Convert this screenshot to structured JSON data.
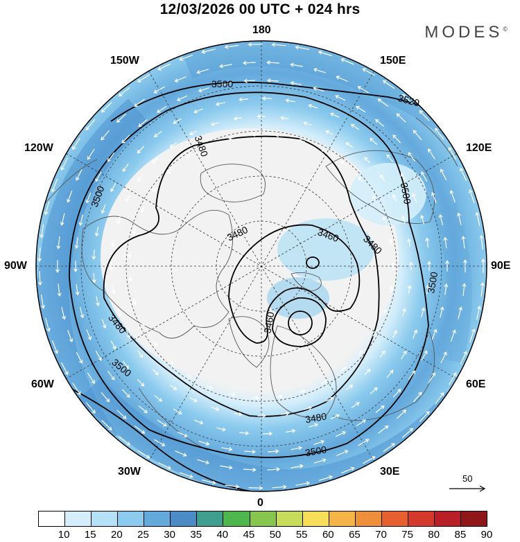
{
  "header": {
    "title": "12/03/2026  00 UTC  + 024 hrs",
    "brand": "MODES",
    "brand_mark": "©"
  },
  "map": {
    "projection": "north-polar-stereographic",
    "longitude_labels": {
      "top": "180",
      "bottom": "0",
      "left": "90W",
      "right": "90E",
      "upper_left_1": "150W",
      "upper_left_2": "120W",
      "upper_right_1": "150E",
      "upper_right_2": "120E",
      "lower_left_1": "60W",
      "lower_left_2": "30W",
      "lower_right_1": "60E",
      "lower_right_2": "30E"
    },
    "contours": {
      "levels": [
        3460,
        3480,
        3500,
        3520
      ],
      "labels": [
        {
          "text": "3500"
        },
        {
          "text": "3520"
        },
        {
          "text": "3480"
        },
        {
          "text": "3500"
        },
        {
          "text": "3500"
        },
        {
          "text": "3480"
        },
        {
          "text": "3460"
        },
        {
          "text": "3480"
        },
        {
          "text": "3500"
        },
        {
          "text": "3480"
        },
        {
          "text": "3500"
        },
        {
          "text": "3480"
        },
        {
          "text": "3500"
        },
        {
          "text": "3460"
        }
      ]
    },
    "reference_vector": {
      "label": "50"
    },
    "colors": {
      "land_outline": "#555555",
      "calm_fill": "#f2f2f2",
      "contour_line": "#000000",
      "arrow": "#ffffff"
    }
  },
  "colorbar": {
    "ticks": [
      "10",
      "15",
      "20",
      "25",
      "30",
      "35",
      "40",
      "45",
      "50",
      "55",
      "60",
      "65",
      "70",
      "75",
      "80",
      "85",
      "90"
    ],
    "colors": [
      "#ffffff",
      "#d4eefb",
      "#b4e1f5",
      "#8ccbee",
      "#64a9dc",
      "#4b8cc6",
      "#3f9f8e",
      "#4fb54d",
      "#86c54e",
      "#c6dc5a",
      "#f7de5a",
      "#f4b447",
      "#ee8f3c",
      "#e6612f",
      "#d43a2b",
      "#b81f26",
      "#8f1717"
    ]
  }
}
